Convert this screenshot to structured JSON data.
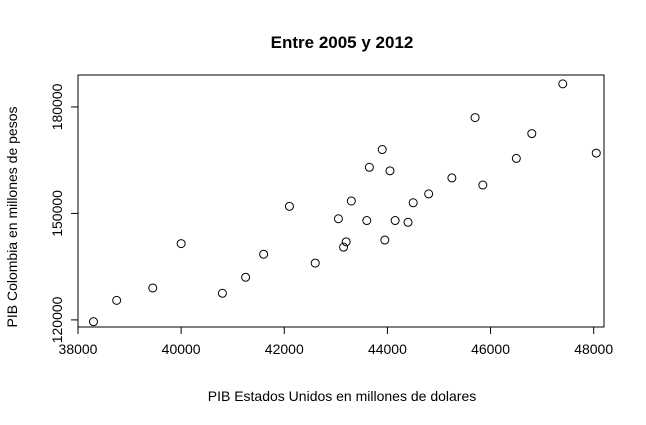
{
  "chart_data": {
    "type": "scatter",
    "title": "Entre 2005 y 2012",
    "xlabel": "PIB Estados Unidos en millones de dolares",
    "ylabel": "PIB Colombia en millones de pesos",
    "xlim": [
      38000,
      48200
    ],
    "ylim": [
      118000,
      189000
    ],
    "xticks": [
      38000,
      40000,
      42000,
      44000,
      46000,
      48000
    ],
    "yticks": [
      120000,
      150000,
      180000
    ],
    "grid": false,
    "legend": "none",
    "points": [
      {
        "x": 38300,
        "y": 119500
      },
      {
        "x": 38750,
        "y": 125500
      },
      {
        "x": 39450,
        "y": 129000
      },
      {
        "x": 40000,
        "y": 141500
      },
      {
        "x": 40800,
        "y": 127500
      },
      {
        "x": 41250,
        "y": 132000
      },
      {
        "x": 41600,
        "y": 138500
      },
      {
        "x": 42100,
        "y": 152000
      },
      {
        "x": 42600,
        "y": 136000
      },
      {
        "x": 43050,
        "y": 148500
      },
      {
        "x": 43150,
        "y": 140500
      },
      {
        "x": 43200,
        "y": 142000
      },
      {
        "x": 43300,
        "y": 153500
      },
      {
        "x": 43600,
        "y": 148000
      },
      {
        "x": 43650,
        "y": 163000
      },
      {
        "x": 43900,
        "y": 168000
      },
      {
        "x": 43950,
        "y": 142500
      },
      {
        "x": 44050,
        "y": 162000
      },
      {
        "x": 44150,
        "y": 148000
      },
      {
        "x": 44400,
        "y": 147500
      },
      {
        "x": 44500,
        "y": 153000
      },
      {
        "x": 44800,
        "y": 155500
      },
      {
        "x": 45250,
        "y": 160000
      },
      {
        "x": 45700,
        "y": 177000
      },
      {
        "x": 45850,
        "y": 158000
      },
      {
        "x": 46500,
        "y": 165500
      },
      {
        "x": 46800,
        "y": 172500
      },
      {
        "x": 47400,
        "y": 186500
      },
      {
        "x": 48050,
        "y": 167000
      }
    ]
  }
}
